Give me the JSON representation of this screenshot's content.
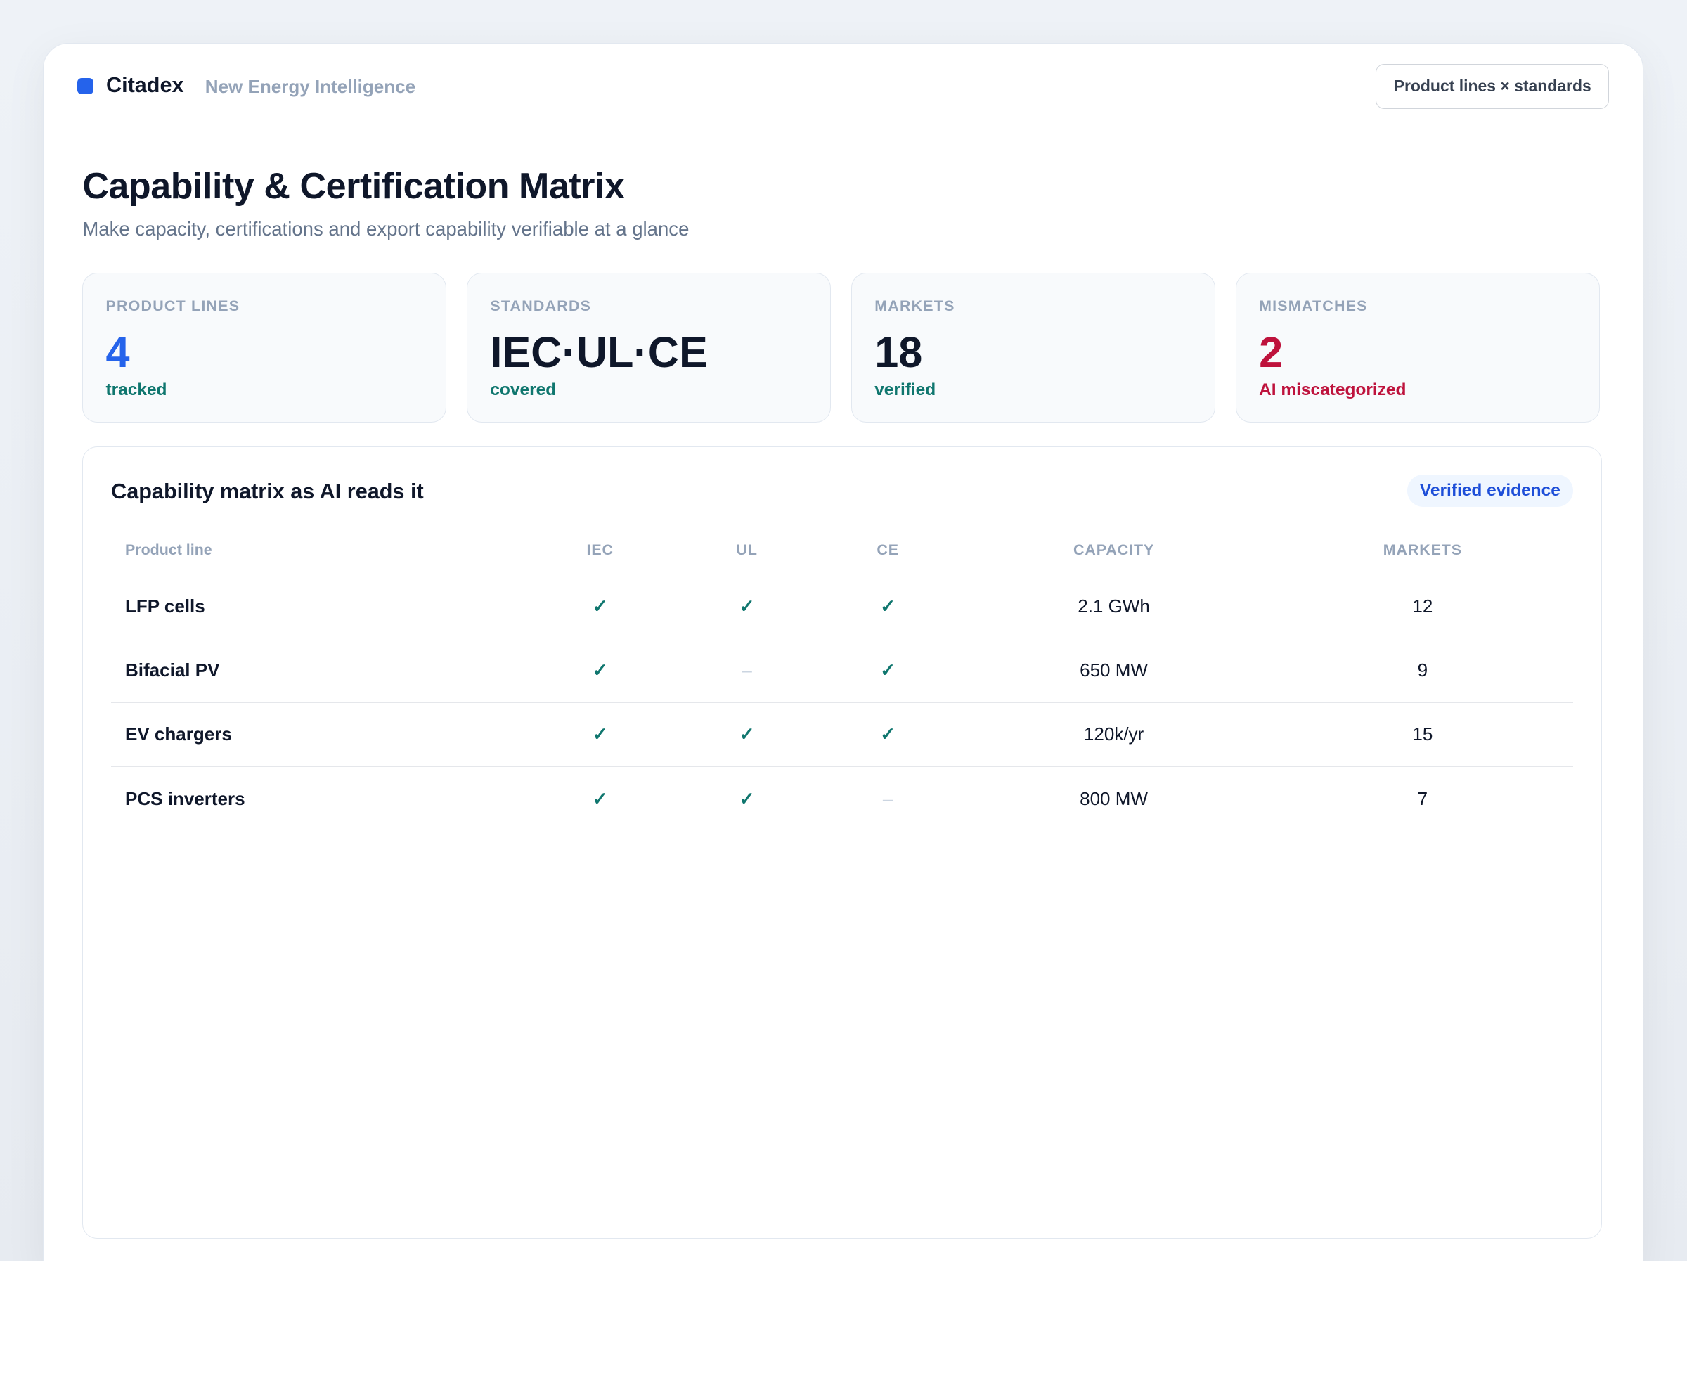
{
  "header": {
    "brand": "Citadex",
    "tagline": "New Energy Intelligence",
    "button": "Product lines × standards"
  },
  "title": "Capability & Certification Matrix",
  "subtitle": "Make capacity, certifications and export capability verifiable at a glance",
  "stats": [
    {
      "label": "Product lines",
      "value": 4,
      "note": "tracked"
    },
    {
      "label": "Standards",
      "value": "IEC·UL·CE",
      "note": "covered"
    },
    {
      "label": "Markets",
      "value": 18,
      "note": "verified"
    },
    {
      "label": "Mismatches",
      "value": 2,
      "note": "AI miscategorized"
    }
  ],
  "panel": {
    "title": "Capability matrix as AI reads it",
    "badge": "Verified evidence"
  },
  "table": {
    "columns": [
      "Product line",
      "IEC",
      "UL",
      "CE",
      "CAPACITY",
      "MARKETS"
    ],
    "rows": [
      [
        "LFP cells",
        "✓",
        "✓",
        "✓",
        "2.1 GWh",
        12
      ],
      [
        "Bifacial PV",
        "✓",
        "–",
        "✓",
        "650 MW",
        9
      ],
      [
        "EV chargers",
        "✓",
        "✓",
        "✓",
        "120k/yr",
        15
      ],
      [
        "PCS inverters",
        "✓",
        "✓",
        "–",
        "800 MW",
        7
      ]
    ]
  }
}
